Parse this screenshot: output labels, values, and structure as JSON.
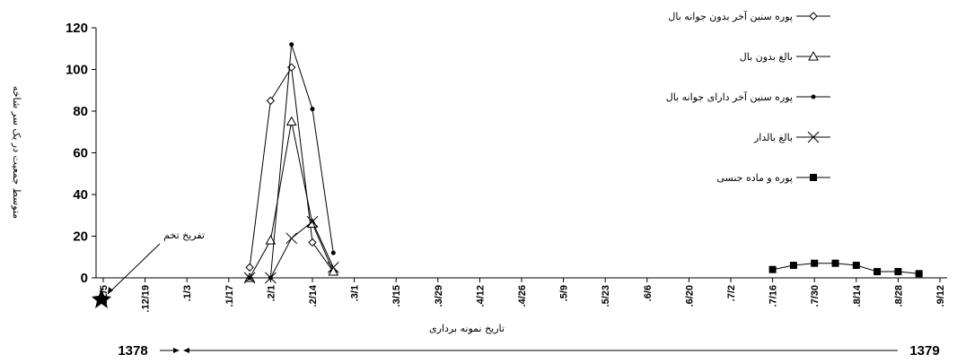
{
  "chart_data": {
    "type": "line",
    "y_label": "متوسط جمعیت در یک سر شاخه",
    "x_label": "تاریخ نمونه برداری",
    "annotations": [
      "تفریخ تخم",
      "1378",
      "1379"
    ],
    "categories": [
      ".12/5",
      null,
      ".12/19",
      null,
      ".1/3",
      null,
      ".1/17",
      null,
      ".2/1",
      null,
      ".2/14",
      null,
      ".3/1",
      null,
      ".3/15",
      null,
      ".3/29",
      null,
      ".4/12",
      null,
      ".4/26",
      null,
      ".5/9",
      null,
      ".5/23",
      null,
      ".6/6",
      null,
      ".6/20",
      null,
      ".7/2",
      null,
      ".7/16",
      null,
      ".7/30",
      null,
      ".8/14",
      null,
      ".8/28",
      null,
      ".9/12"
    ],
    "ylim": [
      0,
      120
    ],
    "yticks": [
      0,
      20,
      40,
      60,
      80,
      100,
      120
    ],
    "grid": false,
    "legend": "top-right",
    "series": [
      {
        "name": "پوره سنین آخر بدون جوانه بال",
        "marker": "diamond",
        "color": "#000000",
        "values": [
          null,
          null,
          null,
          null,
          null,
          null,
          null,
          5,
          85,
          101,
          17,
          3,
          null,
          null,
          null,
          null,
          null,
          null,
          null,
          null,
          null,
          null,
          null,
          null,
          null,
          null,
          null,
          null,
          null,
          null,
          null,
          null,
          null,
          null,
          null,
          null,
          null,
          null,
          null,
          null,
          null
        ]
      },
      {
        "name": "بالغ بدون بال",
        "marker": "triangle",
        "color": "#000000",
        "values": [
          null,
          null,
          null,
          null,
          null,
          null,
          null,
          0,
          18,
          75,
          26,
          3,
          null,
          null,
          null,
          null,
          null,
          null,
          null,
          null,
          null,
          null,
          null,
          null,
          null,
          null,
          null,
          null,
          null,
          null,
          null,
          null,
          null,
          null,
          null,
          null,
          null,
          null,
          null,
          null,
          null
        ]
      },
      {
        "name": "پوره سنین آخر دارای جوانه بال",
        "marker": "circle",
        "color": "#000000",
        "values": [
          null,
          null,
          null,
          null,
          null,
          null,
          null,
          0,
          0,
          112,
          81,
          12,
          null,
          null,
          null,
          null,
          null,
          null,
          null,
          null,
          null,
          null,
          null,
          null,
          null,
          null,
          null,
          null,
          null,
          null,
          null,
          null,
          null,
          null,
          null,
          null,
          null,
          null,
          null,
          null,
          null
        ]
      },
      {
        "name": "بالغ بالدار",
        "marker": "x",
        "color": "#000000",
        "values": [
          null,
          null,
          null,
          null,
          null,
          null,
          null,
          0,
          0,
          19,
          27,
          5,
          null,
          null,
          null,
          null,
          null,
          null,
          null,
          null,
          null,
          null,
          null,
          null,
          null,
          null,
          null,
          null,
          null,
          null,
          null,
          null,
          null,
          null,
          null,
          null,
          null,
          null,
          null,
          null,
          null
        ]
      },
      {
        "name": "پوره و ماده جنسی",
        "marker": "square",
        "color": "#000000",
        "values": [
          null,
          null,
          null,
          null,
          null,
          null,
          null,
          null,
          null,
          null,
          null,
          null,
          null,
          null,
          null,
          null,
          null,
          null,
          null,
          null,
          null,
          null,
          null,
          null,
          null,
          null,
          null,
          null,
          null,
          null,
          null,
          null,
          4,
          6,
          7,
          7,
          6,
          3,
          3,
          2,
          null
        ]
      }
    ]
  }
}
